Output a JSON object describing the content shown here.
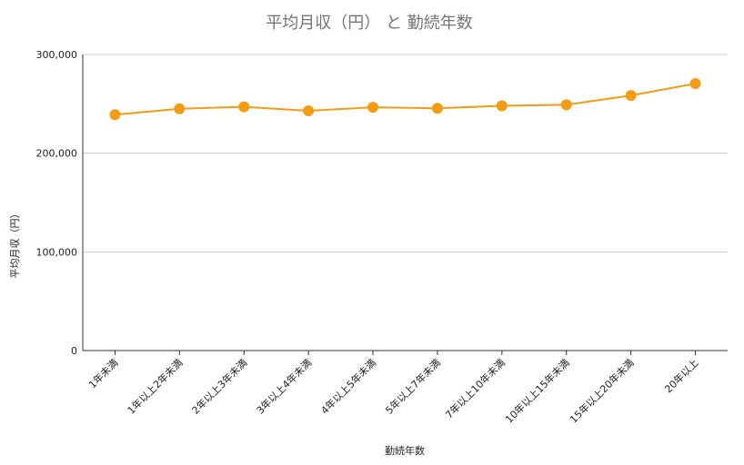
{
  "chart_data": {
    "type": "line",
    "title": "平均月収（円） と 勤続年数",
    "xlabel": "勤続年数",
    "ylabel": "平均月収（円）",
    "ylim": [
      0,
      300000
    ],
    "yticks": [
      0,
      100000,
      200000,
      300000
    ],
    "ytick_labels": [
      "0",
      "100,000",
      "200,000",
      "300,000"
    ],
    "grid": true,
    "legend": "none",
    "categories": [
      "1年未満",
      "1年以上2年未満",
      "2年以上3年未満",
      "3年以上4年未満",
      "4年以上5年未満",
      "5年以上7年未満",
      "7年以上10年未満",
      "10年以上15年未満",
      "15年以上20年未満",
      "20年以上"
    ],
    "series": [
      {
        "values": [
          239000,
          245000,
          247000,
          243000,
          246500,
          245500,
          248000,
          249000,
          258500,
          270500
        ]
      }
    ],
    "colors": {
      "line": "#f39c12",
      "grid": "#cccccc",
      "axis": "#333333"
    }
  }
}
